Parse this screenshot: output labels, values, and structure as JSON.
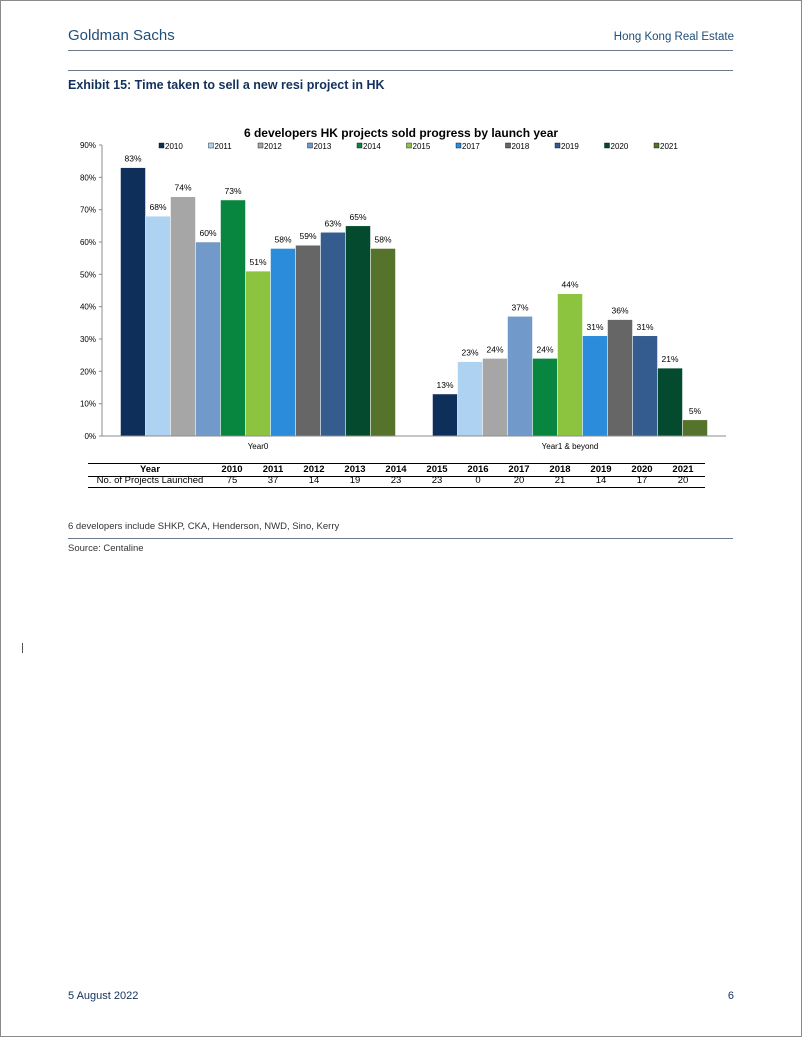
{
  "header": {
    "brand": "Goldman Sachs",
    "section": "Hong Kong Real Estate"
  },
  "exhibit_title": "Exhibit 15: Time taken to sell a new resi project in HK",
  "chart_data": {
    "type": "bar",
    "title": "6 developers HK projects sold progress by launch year",
    "categories": [
      "Year0",
      "Year1 & beyond"
    ],
    "series": [
      {
        "name": "2010",
        "color": "#0d2f5a",
        "values": [
          83,
          13
        ],
        "labels": [
          "83%",
          "13%"
        ]
      },
      {
        "name": "2011",
        "color": "#aed2f2",
        "values": [
          68,
          23
        ],
        "labels": [
          "68%",
          "23%"
        ]
      },
      {
        "name": "2012",
        "color": "#a6a6a6",
        "values": [
          74,
          24
        ],
        "labels": [
          "74%",
          "24%"
        ]
      },
      {
        "name": "2013",
        "color": "#7199c9",
        "values": [
          60,
          37
        ],
        "labels": [
          "60%",
          "37%"
        ]
      },
      {
        "name": "2014",
        "color": "#08853e",
        "values": [
          73,
          24
        ],
        "labels": [
          "73%",
          "24%"
        ]
      },
      {
        "name": "2015",
        "color": "#8cc43f",
        "values": [
          51,
          44
        ],
        "labels": [
          "51%",
          "44%"
        ]
      },
      {
        "name": "2017",
        "color": "#2a8cdb",
        "values": [
          58,
          31
        ],
        "labels": [
          "58%",
          "31%"
        ]
      },
      {
        "name": "2018",
        "color": "#666666",
        "values": [
          59,
          36
        ],
        "labels": [
          "59%",
          "36%"
        ]
      },
      {
        "name": "2019",
        "color": "#355c8e",
        "values": [
          63,
          31
        ],
        "labels": [
          "63%",
          "31%"
        ]
      },
      {
        "name": "2020",
        "color": "#044a2e",
        "values": [
          65,
          21
        ],
        "labels": [
          "65%",
          "21%"
        ]
      },
      {
        "name": "2021",
        "color": "#56732b",
        "values": [
          58,
          5
        ],
        "labels": [
          "58%",
          "5%"
        ]
      }
    ],
    "ylim": [
      0,
      90
    ],
    "yticks": [
      "0%",
      "10%",
      "20%",
      "30%",
      "40%",
      "50%",
      "60%",
      "70%",
      "80%",
      "90%"
    ],
    "legend_position": "top",
    "grid": false
  },
  "table": {
    "header_label": "Year",
    "row_label": "No. of Projects Launched",
    "years": [
      "2010",
      "2011",
      "2012",
      "2013",
      "2014",
      "2015",
      "2016",
      "2017",
      "2018",
      "2019",
      "2020",
      "2021"
    ],
    "counts": [
      "75",
      "37",
      "14",
      "19",
      "23",
      "23",
      "0",
      "20",
      "21",
      "14",
      "17",
      "20"
    ]
  },
  "footnote": "6 developers include SHKP, CKA, Henderson, NWD, Sino, Kerry",
  "source": "Source: Centaline",
  "footer": {
    "date": "5 August 2022",
    "page": "6"
  }
}
